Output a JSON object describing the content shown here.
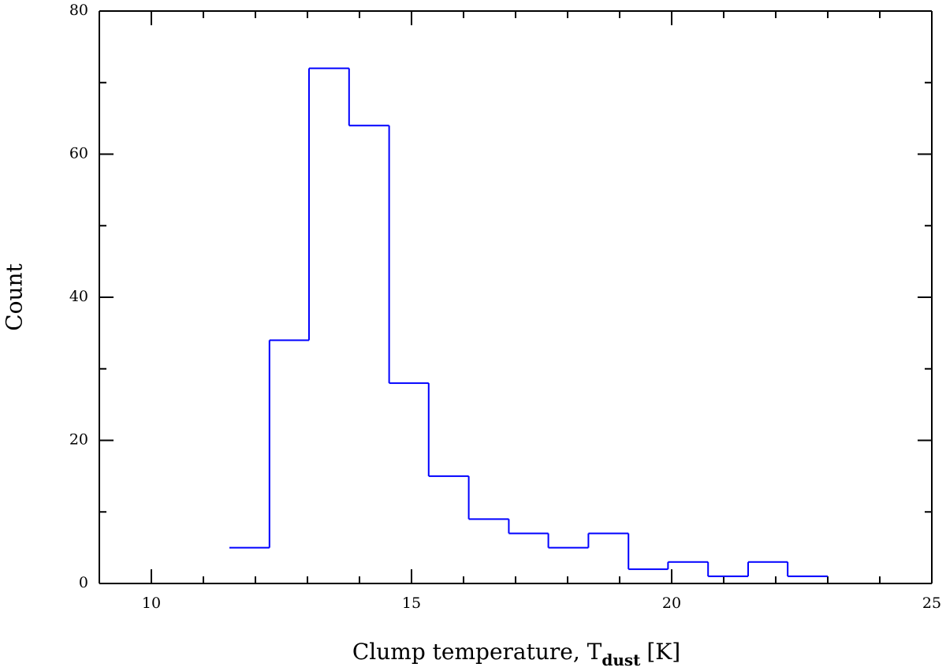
{
  "chart_data": {
    "type": "histogram",
    "x_label": "Clump temperature, T",
    "x_label_sub": "dust",
    "x_label_end": "[K]",
    "y_label": "Count",
    "bins": [
      11.5,
      12.27,
      13.03,
      13.8,
      14.57,
      15.33,
      16.1,
      16.87,
      17.63,
      18.4,
      19.17,
      19.93,
      20.7,
      21.47,
      22.23,
      23.0
    ],
    "values": [
      5,
      34,
      72,
      64,
      28,
      15,
      9,
      7,
      5,
      7,
      2,
      3,
      1,
      3,
      1
    ],
    "color": "#0000ff",
    "xlim": [
      9,
      25
    ],
    "xticks": [
      10,
      15,
      20,
      25
    ],
    "ylim": [
      0,
      80
    ],
    "yticks": [
      0,
      20,
      40,
      60,
      80
    ],
    "grid": false
  }
}
